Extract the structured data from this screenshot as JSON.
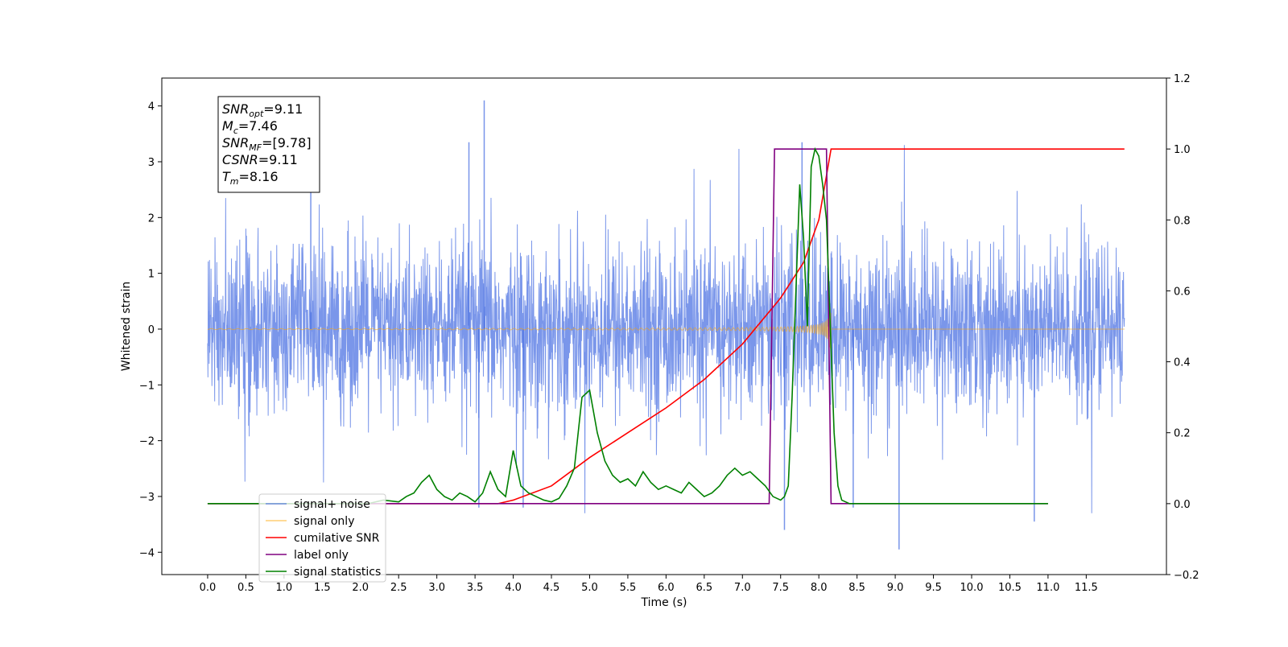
{
  "chart_data": {
    "type": "line",
    "title": "",
    "xlabel": "Time (s)",
    "ylabel": "Whitened strain",
    "y2label": "",
    "xlim": [
      -0.6,
      12.55
    ],
    "ylim": [
      -4.4,
      4.5
    ],
    "y2lim": [
      -0.2,
      1.2
    ],
    "grid": false,
    "legend_position": "lower-left",
    "x_ticks": [
      "0.0",
      "0.5",
      "1.0",
      "1.5",
      "2.0",
      "2.5",
      "3.0",
      "3.5",
      "4.0",
      "4.5",
      "5.0",
      "5.5",
      "6.0",
      "6.5",
      "7.0",
      "7.5",
      "8.0",
      "8.5",
      "9.0",
      "9.5",
      "10.0",
      "10.5",
      "11.0",
      "11.5"
    ],
    "y_ticks": [
      "−4",
      "−3",
      "−2",
      "−1",
      "0",
      "1",
      "2",
      "3",
      "4"
    ],
    "y2_ticks": [
      "−0.2",
      "0.0",
      "0.2",
      "0.4",
      "0.6",
      "0.8",
      "1.0",
      "1.2"
    ],
    "annotation": {
      "lines": [
        {
          "sym": "SNR",
          "sub": "opt",
          "value": "=9.11"
        },
        {
          "sym": "M",
          "sub": "c",
          "value": "=7.46"
        },
        {
          "sym": "SNR",
          "sub": "MF",
          "value": "=[9.78]"
        },
        {
          "sym": "CSNR",
          "sub": "",
          "value": "=9.11"
        },
        {
          "sym": "T",
          "sub": "m",
          "value": "=8.16"
        }
      ]
    },
    "series": [
      {
        "name": "signal+ noise",
        "color": "#4169e1",
        "axis": "left",
        "kind": "noise",
        "noise_std": 0.75,
        "t_start": 0.0,
        "t_end": 12.0,
        "peak_max": 4.1,
        "peak_min": -3.95
      },
      {
        "name": "signal only",
        "color": "#ffa500",
        "axis": "left",
        "kind": "chirp",
        "t_start": 0.0,
        "t_end": 12.0,
        "t_merger": 8.16,
        "max_amplitude": 0.7
      },
      {
        "name": "cumilative SNR",
        "color": "#ff0000",
        "axis": "right",
        "kind": "line",
        "x": [
          0.0,
          3.8,
          4.0,
          4.5,
          5.0,
          5.5,
          6.0,
          6.5,
          7.0,
          7.5,
          7.8,
          8.0,
          8.16,
          12.0
        ],
        "values": [
          0.0,
          0.0,
          0.01,
          0.05,
          0.13,
          0.2,
          0.27,
          0.35,
          0.45,
          0.58,
          0.68,
          0.8,
          1.0,
          1.0
        ]
      },
      {
        "name": "label only",
        "color": "#800080",
        "axis": "right",
        "kind": "line",
        "x": [
          0.0,
          7.35,
          7.42,
          8.1,
          8.16,
          11.0
        ],
        "values": [
          0.0,
          0.0,
          1.0,
          1.0,
          0.0,
          0.0
        ]
      },
      {
        "name": "signal statistics",
        "color": "#008000",
        "axis": "right",
        "kind": "line",
        "x": [
          0.0,
          2.1,
          2.3,
          2.5,
          2.6,
          2.7,
          2.8,
          2.9,
          3.0,
          3.1,
          3.2,
          3.3,
          3.4,
          3.5,
          3.6,
          3.7,
          3.8,
          3.9,
          4.0,
          4.1,
          4.2,
          4.3,
          4.4,
          4.5,
          4.6,
          4.7,
          4.8,
          4.9,
          5.0,
          5.1,
          5.2,
          5.3,
          5.4,
          5.5,
          5.6,
          5.7,
          5.8,
          5.9,
          6.0,
          6.1,
          6.2,
          6.3,
          6.4,
          6.5,
          6.6,
          6.7,
          6.8,
          6.9,
          7.0,
          7.1,
          7.2,
          7.3,
          7.4,
          7.5,
          7.55,
          7.6,
          7.65,
          7.7,
          7.75,
          7.8,
          7.85,
          7.9,
          7.95,
          8.0,
          8.05,
          8.1,
          8.15,
          8.2,
          8.25,
          8.3,
          8.4,
          11.0
        ],
        "values": [
          0.0,
          0.0,
          0.01,
          0.005,
          0.02,
          0.03,
          0.06,
          0.08,
          0.04,
          0.02,
          0.01,
          0.03,
          0.02,
          0.005,
          0.03,
          0.09,
          0.04,
          0.02,
          0.15,
          0.05,
          0.03,
          0.02,
          0.01,
          0.005,
          0.015,
          0.05,
          0.1,
          0.3,
          0.32,
          0.2,
          0.12,
          0.08,
          0.06,
          0.07,
          0.05,
          0.09,
          0.06,
          0.04,
          0.05,
          0.04,
          0.03,
          0.06,
          0.04,
          0.02,
          0.03,
          0.05,
          0.08,
          0.1,
          0.08,
          0.09,
          0.07,
          0.05,
          0.02,
          0.01,
          0.02,
          0.05,
          0.3,
          0.6,
          0.9,
          0.75,
          0.5,
          0.95,
          1.0,
          0.98,
          0.9,
          0.8,
          0.5,
          0.2,
          0.05,
          0.01,
          0.0,
          0.0
        ]
      }
    ]
  }
}
